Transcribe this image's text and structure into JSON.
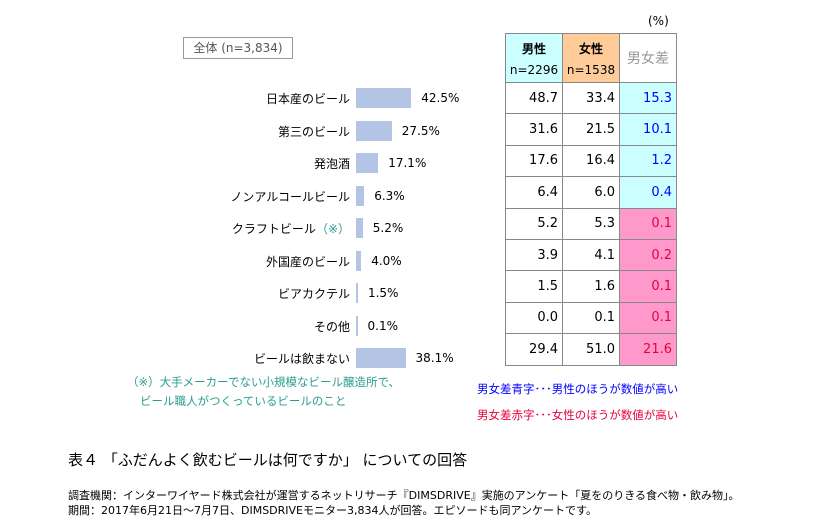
{
  "chart_data": {
    "type": "bar",
    "badge": "全体 (n=3,834)",
    "categories": [
      "日本産のビール",
      "第三のビール",
      "発泡酒",
      "ノンアルコールビール",
      "クラフトビール",
      "外国産のビール",
      "ビアカクテル",
      "その他",
      "ビールは飲まない"
    ],
    "category_notes": [
      "",
      "",
      "",
      "",
      "（※）",
      "",
      "",
      "",
      ""
    ],
    "values": [
      42.5,
      27.5,
      17.1,
      6.3,
      5.2,
      4.0,
      1.5,
      0.1,
      38.1
    ],
    "value_labels": [
      "42.5%",
      "27.5%",
      "17.1%",
      "6.3%",
      "5.2%",
      "4.0%",
      "1.5%",
      "0.1%",
      "38.1%"
    ],
    "bar_color": "#b4c4e4",
    "table": {
      "unit": "(%)",
      "headers": [
        {
          "label": "男性",
          "sub": "n=2296",
          "color": "#ccffff"
        },
        {
          "label": "女性",
          "sub": "n=1538",
          "color": "#ffcc99"
        },
        {
          "label": "男女差",
          "sub": ""
        }
      ],
      "male": [
        "48.7",
        "31.6",
        "17.6",
        "6.4",
        "5.2",
        "3.9",
        "1.5",
        "0.0",
        "29.4"
      ],
      "female": [
        "33.4",
        "21.5",
        "16.4",
        "6.0",
        "5.3",
        "4.1",
        "1.6",
        "0.1",
        "51.0"
      ],
      "diff": [
        "15.3",
        "10.1",
        "1.2",
        "0.4",
        "0.1",
        "0.2",
        "0.1",
        "0.1",
        "21.6"
      ],
      "diff_side": [
        "male",
        "male",
        "male",
        "male",
        "female",
        "female",
        "female",
        "female",
        "female"
      ]
    }
  },
  "note": [
    "（※）大手メーカーでない小規模なビール醸造所で、",
    "ビール職人がつくっているビールのこと"
  ],
  "legend": {
    "blue": "男女差青字･･･男性のほうが数値が高い",
    "red": "男女差赤字･･･女性のほうが数値が高い"
  },
  "colors": {
    "blue_text": "#0000ff",
    "red_text": "#e8003c",
    "blue_bg": "#ccffff",
    "pink_bg": "#ff99cc",
    "note": "#2a9d8f"
  },
  "caption": "表４ 「ふだんよく飲むビールは何ですか」 についての回答",
  "footer": [
    "調査機関：インターワイヤード株式会社が運営するネットリサーチ『DIMSDRIVE』実施のアンケート「夏をのりきる食べ物・飲み物」。",
    "期間：2017年6月21日～7月7日、DIMSDRIVEモニター3,834人が回答。エピソードも同アンケートです。"
  ]
}
